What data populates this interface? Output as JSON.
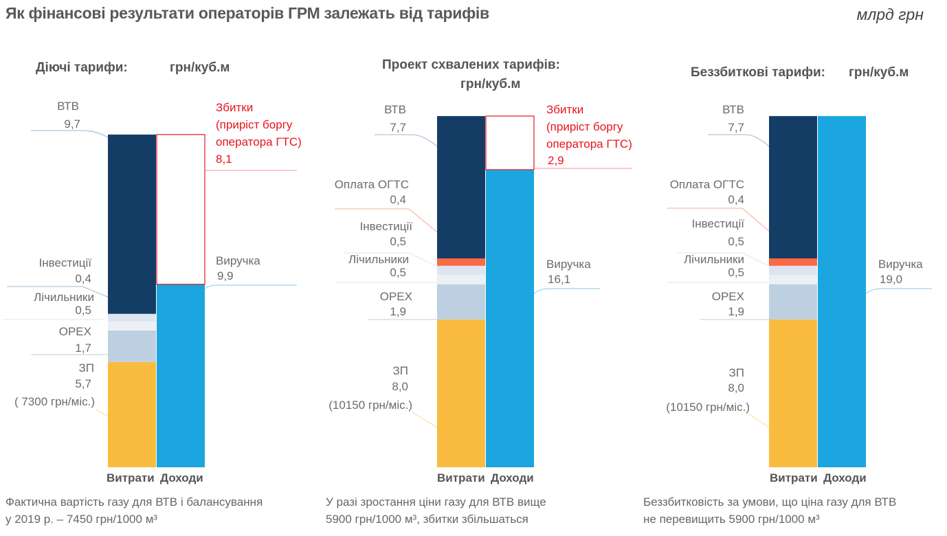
{
  "title": "Як фінансові результати операторів ГРМ залежать від тарифів",
  "unit": "млрд грн",
  "colors": {
    "ВТВ": "#143d66",
    "Оплата ОГТС": "#f96a45",
    "Інвестиції": "#dde6f0",
    "Лічильники": "#eceff4",
    "OPEX": "#bcd0e1",
    "ЗП": "#f9bc40",
    "Виручка": "#1ba6df",
    "Збитки": "#e8141b"
  },
  "chart_data": [
    {
      "type": "bar",
      "stacked": true,
      "title": "Діючі тарифи:",
      "subtitle": "грн/куб.м",
      "categories": [
        "Витрати",
        "Доходи"
      ],
      "costs": [
        {
          "name": "ЗП",
          "value": 5.7,
          "label": "5,7",
          "note": "( 7300 грн/міс.)"
        },
        {
          "name": "OPEX",
          "value": 1.7,
          "label": "1,7"
        },
        {
          "name": "Лічильники",
          "value": 0.5,
          "label": "0,5"
        },
        {
          "name": "Інвестиції",
          "value": 0.4,
          "label": "0,4"
        },
        {
          "name": "ВТВ",
          "value": 9.7,
          "label": "9,7"
        }
      ],
      "income": [
        {
          "name": "Виручка",
          "value": 9.9,
          "label": "9,9"
        },
        {
          "name": "Збитки",
          "full_name": "Збитки (приріст боргу оператора ГТС)",
          "line1": "Збитки",
          "line2": "(приріст боргу",
          "line3": "оператора ГТС)",
          "value": 8.1,
          "label": "8,1"
        }
      ],
      "footnote_1": "Фактична вартість газу для ВТВ і балансування",
      "footnote_2": "у 2019 р. – 7450 грн/1000 м³"
    },
    {
      "type": "bar",
      "stacked": true,
      "title": "Проект схвалених тарифів:",
      "subtitle": "грн/куб.м",
      "categories": [
        "Витрати",
        "Доходи"
      ],
      "costs": [
        {
          "name": "ЗП",
          "value": 8.0,
          "label": "8,0",
          "note": "(10150 грн/міс.)"
        },
        {
          "name": "OPEX",
          "value": 1.9,
          "label": "1,9"
        },
        {
          "name": "Лічильники",
          "value": 0.5,
          "label": "0,5"
        },
        {
          "name": "Інвестиції",
          "value": 0.5,
          "label": "0,5"
        },
        {
          "name": "Оплата ОГТС",
          "value": 0.4,
          "label": "0,4"
        },
        {
          "name": "ВТВ",
          "value": 7.7,
          "label": "7,7"
        }
      ],
      "income": [
        {
          "name": "Виручка",
          "value": 16.1,
          "label": "16,1"
        },
        {
          "name": "Збитки",
          "full_name": "Збитки (приріст боргу оператора ГТС)",
          "line1": "Збитки",
          "line2": "(приріст боргу",
          "line3": "оператора ГТС)",
          "value": 2.9,
          "label": "2,9"
        }
      ],
      "footnote_1": "У разі зростання ціни газу для ВТВ вище",
      "footnote_2": "5900 грн/1000 м³, збитки збільшаться"
    },
    {
      "type": "bar",
      "stacked": true,
      "title": "Беззбиткові тарифи:",
      "subtitle": "грн/куб.м",
      "categories": [
        "Витрати",
        "Доходи"
      ],
      "costs": [
        {
          "name": "ЗП",
          "value": 8.0,
          "label": "8,0",
          "note": "(10150 грн/міс.)"
        },
        {
          "name": "OPEX",
          "value": 1.9,
          "label": "1,9"
        },
        {
          "name": "Лічильники",
          "value": 0.5,
          "label": "0,5"
        },
        {
          "name": "Інвестиції",
          "value": 0.5,
          "label": "0,5"
        },
        {
          "name": "Оплата ОГТС",
          "value": 0.4,
          "label": "0,4"
        },
        {
          "name": "ВТВ",
          "value": 7.7,
          "label": "7,7"
        }
      ],
      "income": [
        {
          "name": "Виручка",
          "value": 19.0,
          "label": "19,0"
        }
      ],
      "footnote_1": "Беззбитковість за умови, що ціна газу для ВТВ",
      "footnote_2": "не перевищить 5900 грн/1000 м³"
    }
  ]
}
